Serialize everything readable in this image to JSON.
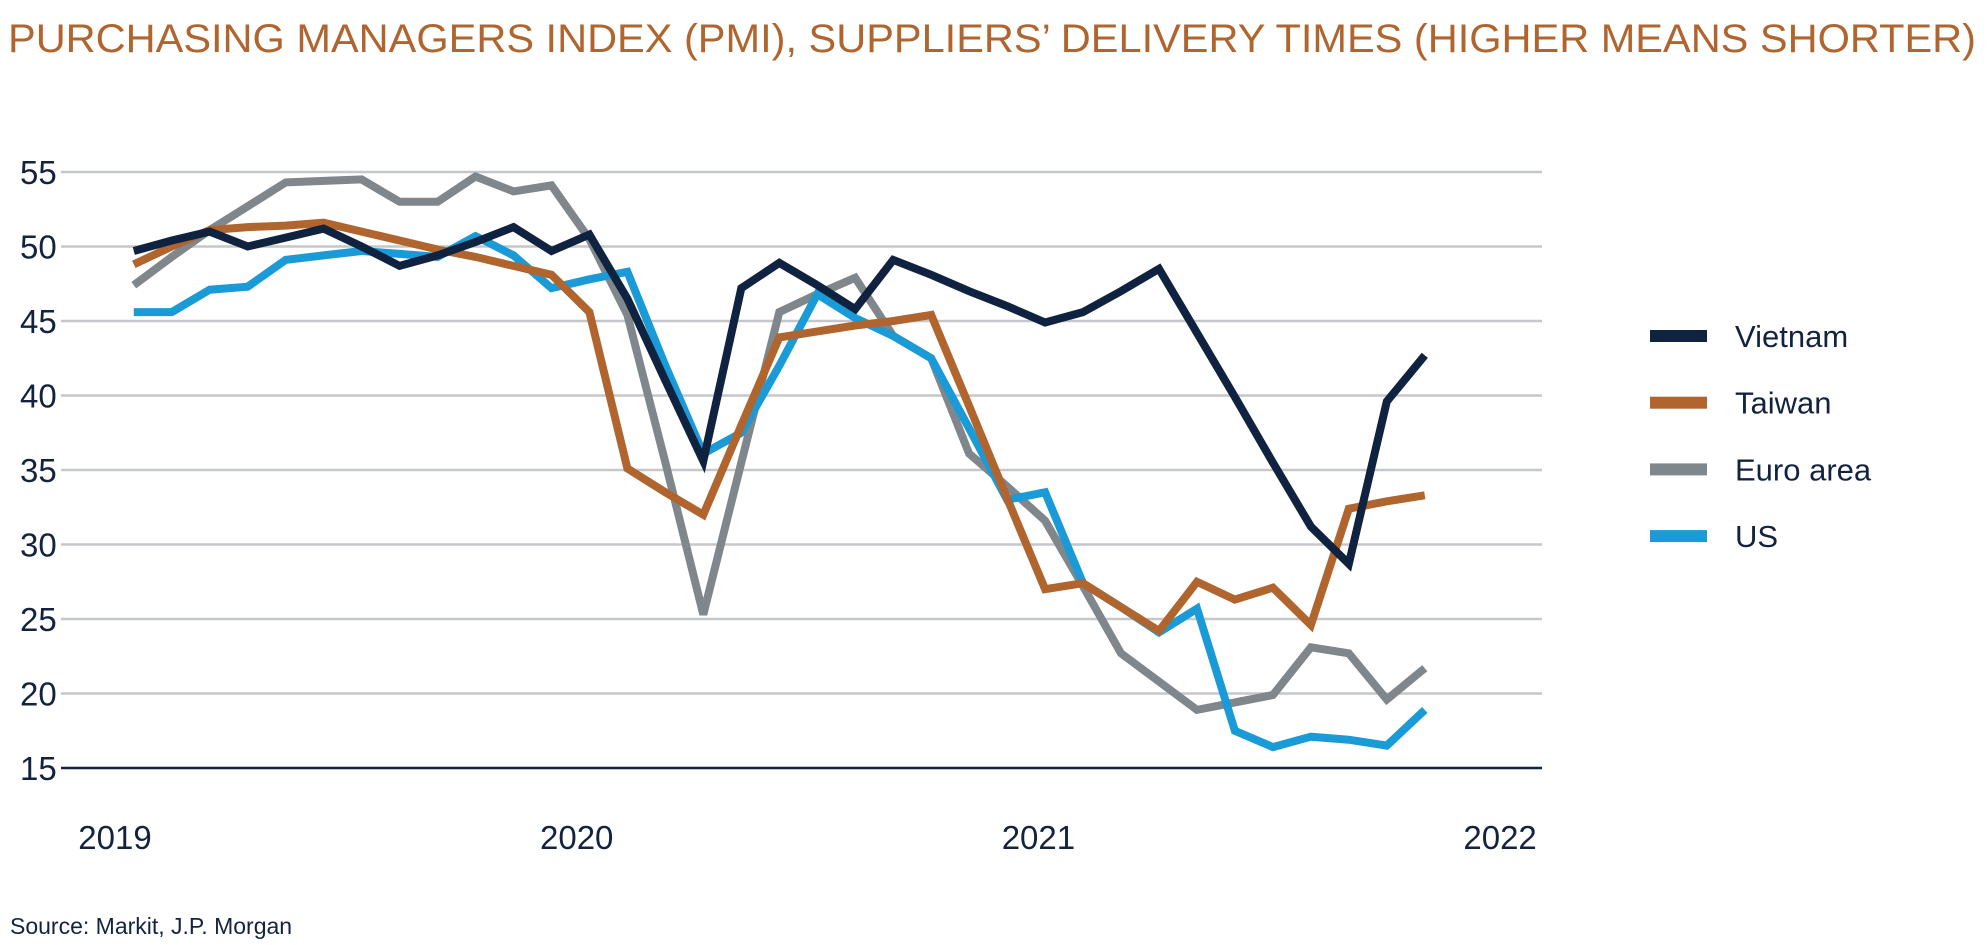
{
  "chart_data": {
    "type": "line",
    "title": "PURCHASING MANAGERS INDEX (PMI), SUPPLIERS’ DELIVERY TIMES (HIGHER MEANS SHORTER)",
    "source": "Source: Markit, J.P. Morgan",
    "x": [
      "2019-01",
      "2019-02",
      "2019-03",
      "2019-04",
      "2019-05",
      "2019-06",
      "2019-07",
      "2019-08",
      "2019-09",
      "2019-10",
      "2019-11",
      "2019-12",
      "2020-01",
      "2020-02",
      "2020-03",
      "2020-04",
      "2020-05",
      "2020-06",
      "2020-07",
      "2020-08",
      "2020-09",
      "2020-10",
      "2020-11",
      "2020-12",
      "2021-01",
      "2021-02",
      "2021-03",
      "2021-04",
      "2021-05",
      "2021-06",
      "2021-07",
      "2021-08",
      "2021-09",
      "2021-10",
      "2021-11"
    ],
    "xticks": [
      "2019",
      "2020",
      "2021",
      "2022"
    ],
    "yticks": [
      55,
      50,
      45,
      40,
      35,
      30,
      25,
      20,
      15
    ],
    "ylim": [
      15,
      55
    ],
    "grid": true,
    "legend_position": "right",
    "series": [
      {
        "name": "Vietnam",
        "color": "#0f2341",
        "values": [
          49.7,
          50.4,
          51.0,
          50.0,
          50.6,
          51.2,
          50.0,
          48.7,
          49.4,
          50.3,
          51.3,
          49.7,
          50.8,
          46.5,
          41.0,
          35.6,
          47.2,
          48.9,
          47.4,
          45.8,
          49.1,
          48.1,
          47.0,
          46.0,
          44.9,
          45.6,
          47.0,
          48.5,
          44.2,
          39.9,
          35.5,
          31.2,
          28.7,
          39.6,
          42.7
        ]
      },
      {
        "name": "Taiwan",
        "color": "#b0652f",
        "values": [
          48.8,
          50.0,
          51.1,
          51.3,
          51.4,
          51.6,
          51.0,
          50.4,
          49.8,
          49.3,
          48.7,
          48.1,
          45.6,
          35.1,
          33.5,
          32.0,
          38.0,
          43.9,
          44.3,
          44.7,
          45.0,
          45.4,
          39.3,
          33.1,
          27.0,
          27.4,
          25.8,
          24.2,
          27.5,
          26.3,
          27.1,
          24.6,
          32.4,
          32.9,
          33.3
        ]
      },
      {
        "name": "Euro area",
        "color": "#7f868c",
        "values": [
          47.4,
          49.3,
          51.1,
          52.7,
          54.3,
          54.4,
          54.5,
          53.0,
          53.0,
          54.7,
          53.7,
          54.1,
          50.5,
          45.4,
          35.5,
          25.3,
          35.5,
          45.6,
          46.8,
          47.9,
          44.0,
          42.5,
          36.1,
          33.9,
          31.6,
          27.2,
          22.7,
          20.8,
          18.9,
          19.4,
          19.9,
          23.1,
          22.7,
          19.6,
          21.7
        ]
      },
      {
        "name": "US",
        "color": "#1a9ad6",
        "values": [
          45.6,
          45.6,
          47.1,
          47.3,
          49.1,
          49.4,
          49.7,
          49.5,
          49.3,
          50.7,
          49.4,
          47.2,
          47.8,
          48.3,
          42.0,
          36.1,
          37.5,
          42.0,
          46.8,
          45.2,
          44.0,
          42.5,
          37.8,
          33.0,
          33.5,
          27.4,
          25.8,
          24.1,
          25.7,
          17.5,
          16.4,
          17.1,
          16.9,
          16.5,
          18.9
        ]
      }
    ]
  }
}
